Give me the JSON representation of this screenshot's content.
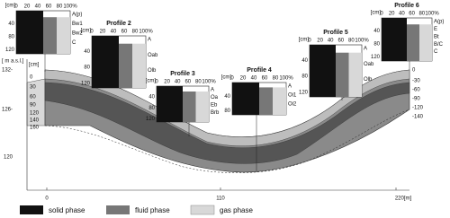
{
  "profiles": [
    {
      "title": "Profile 1",
      "unit": "[cm]",
      "x_ticks": [
        "0",
        "20",
        "40",
        "60",
        "80",
        "100%"
      ],
      "y_ticks": [
        "40",
        "80",
        "120"
      ],
      "horizons": [
        "A(p)",
        "Bw1",
        "Bw2",
        "C"
      ]
    },
    {
      "title": "Profile 2",
      "unit": "[cm]",
      "x_ticks": [
        "0",
        "20",
        "40",
        "60",
        "80",
        "100%"
      ],
      "y_ticks": [
        "40",
        "80",
        "120"
      ],
      "horizons": [
        "A",
        "Oab",
        "Olb"
      ]
    },
    {
      "title": "Profile 3",
      "unit": "[cm]",
      "x_ticks": [
        "0",
        "20",
        "40",
        "60",
        "80",
        "100%"
      ],
      "y_ticks": [
        "40",
        "80",
        "120"
      ],
      "horizons": [
        "A",
        "Oa",
        "Eb",
        "Brb"
      ]
    },
    {
      "title": "Profile 4",
      "unit": "[cm]",
      "x_ticks": [
        "0",
        "20",
        "40",
        "60",
        "80",
        "100%"
      ],
      "y_ticks": [
        "40",
        "80"
      ],
      "horizons": [
        "A",
        "Oi1",
        "Oi2"
      ]
    },
    {
      "title": "Profile 5",
      "unit": "[cm]",
      "x_ticks": [
        "0",
        "20",
        "40",
        "60",
        "80",
        "100%"
      ],
      "y_ticks": [
        "40",
        "80",
        "120"
      ],
      "horizons": [
        "A",
        "Oab",
        "Olb"
      ]
    },
    {
      "title": "Profile 6",
      "unit": "[cm]",
      "x_ticks": [
        "0",
        "20",
        "40",
        "60",
        "80",
        "100%"
      ],
      "y_ticks": [
        "40",
        "80",
        "120"
      ],
      "horizons": [
        "A(p)",
        "E",
        "Bt",
        "B/C",
        "C"
      ]
    }
  ],
  "section": {
    "elevation_unit": "[ m a.s.l.]",
    "elevation_ticks": [
      "132-",
      "126-",
      "120"
    ],
    "depth_unit": "[cm]",
    "left_depth_ticks": [
      "0",
      "30",
      "60",
      "90",
      "120",
      "140",
      "160"
    ],
    "right_depth_ticks": [
      "0",
      "-30",
      "-60",
      "-90",
      "-120",
      "-140"
    ],
    "distance_ticks": [
      "0",
      "110",
      "220[m]"
    ]
  },
  "legend": [
    "solid phase",
    "fluid phase",
    "gas phase"
  ]
}
